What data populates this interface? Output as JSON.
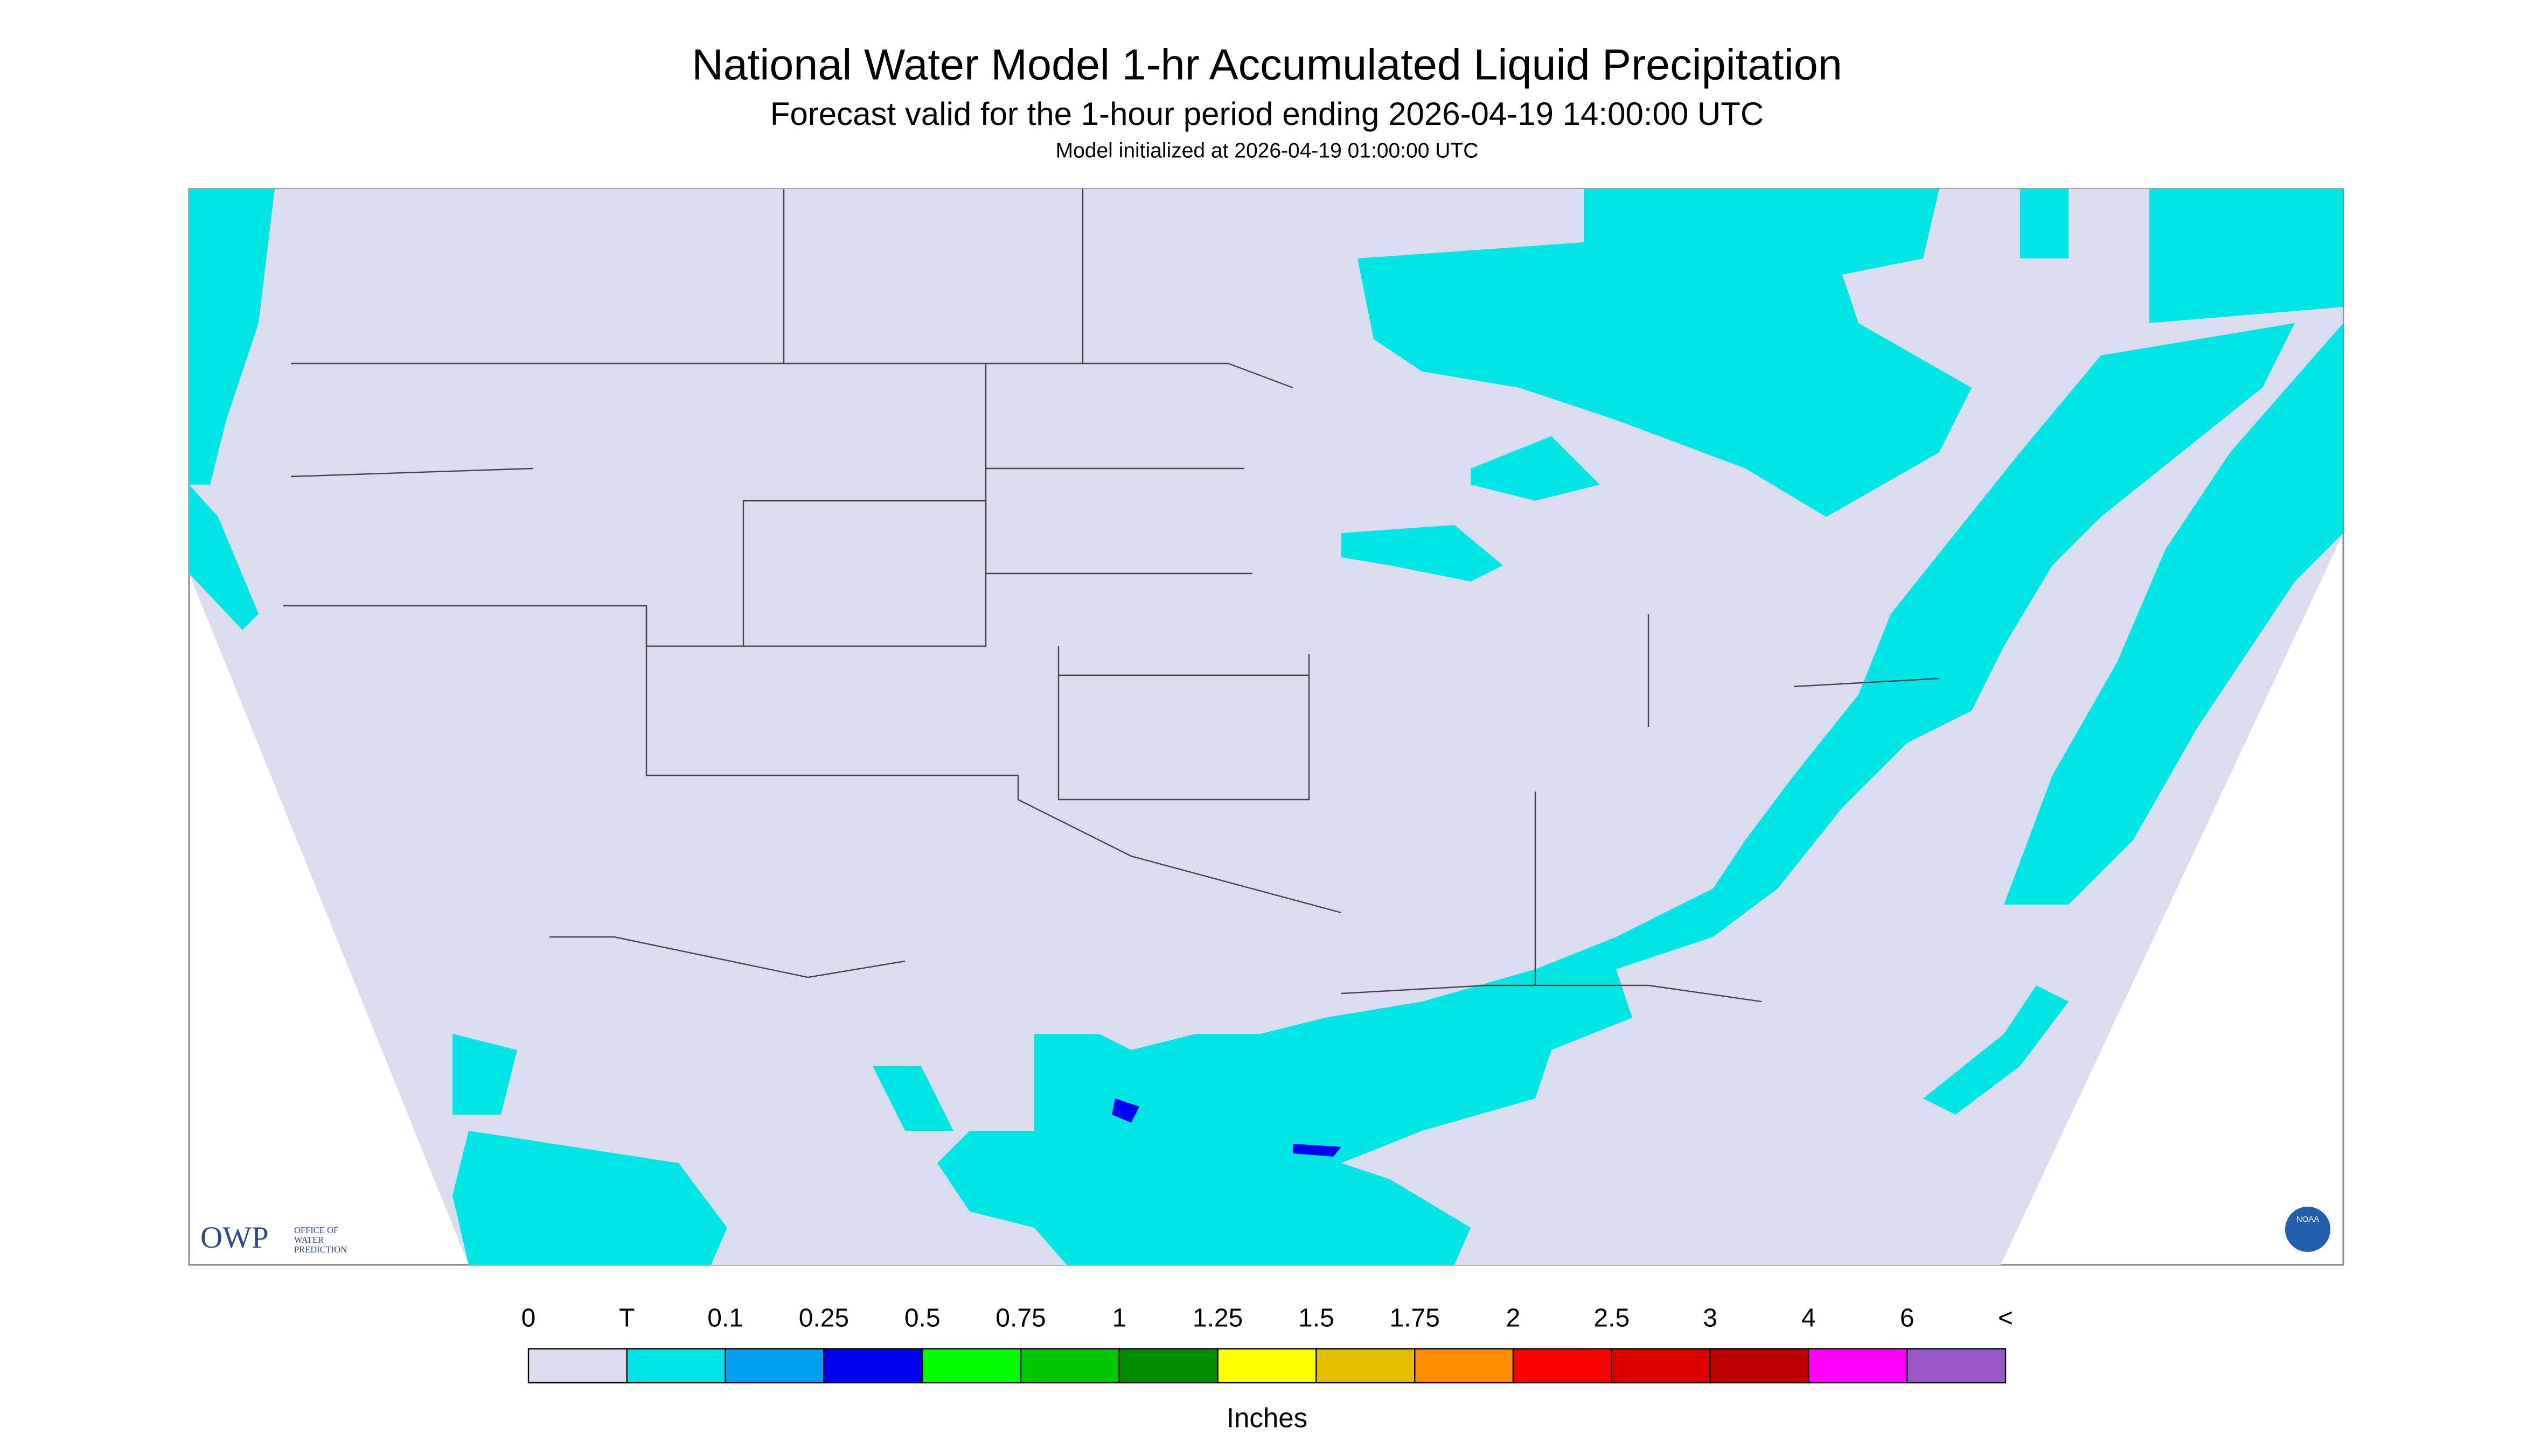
{
  "header": {
    "title": "National Water Model 1-hr Accumulated Liquid Precipitation",
    "subtitle": "Forecast valid for the 1-hour period ending 2026-04-19 14:00:00 UTC",
    "init": "Model initialized at 2026-04-19 01:00:00 UTC"
  },
  "logo": {
    "text": "OWP",
    "lines": [
      "OFFICE OF",
      "WATER",
      "PREDICTION"
    ],
    "badge": "NOAA"
  },
  "legend": {
    "labels": [
      "0",
      "T",
      "0.1",
      "0.25",
      "0.5",
      "0.75",
      "1",
      "1.25",
      "1.5",
      "1.75",
      "2",
      "2.5",
      "3",
      "4",
      "6",
      "<"
    ],
    "colors": [
      "#dcdcf0",
      "#00e6e6",
      "#00a0f0",
      "#0000f0",
      "#00ff00",
      "#00c800",
      "#008c00",
      "#ffff00",
      "#e6be00",
      "#ff8c00",
      "#ff0000",
      "#dc0000",
      "#be0000",
      "#ff00ff",
      "#9858c8"
    ],
    "units": "Inches"
  }
}
